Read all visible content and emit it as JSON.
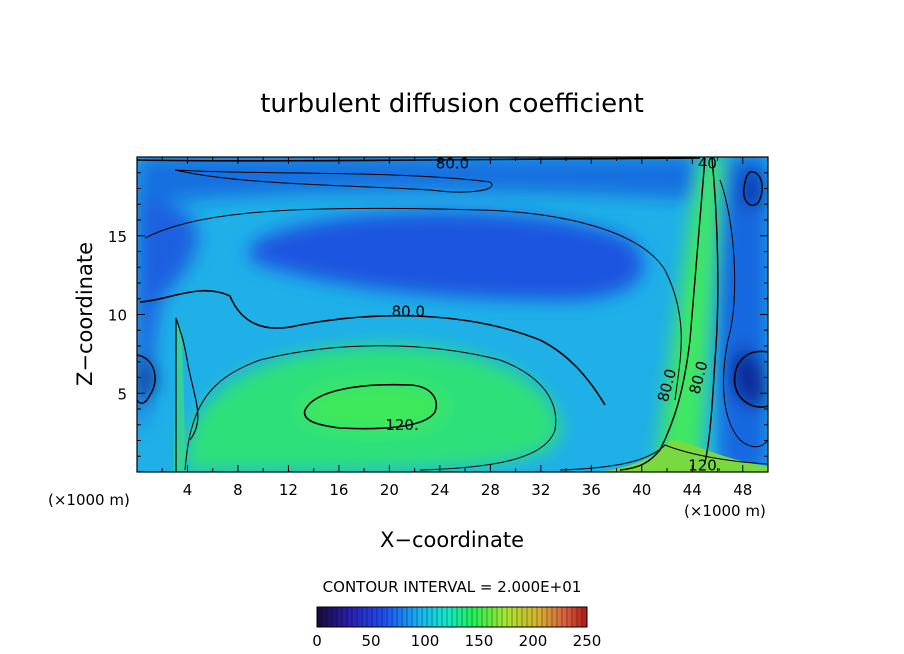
{
  "chart_data": {
    "type": "contour",
    "title": "turbulent diffusion coefficient",
    "xlabel": "X−coordinate",
    "ylabel": "Z−coordinate",
    "x_unit_left": "(×1000 m)",
    "x_unit_right": "(×1000 m)",
    "x_range": [
      0,
      50
    ],
    "y_range": [
      0,
      20
    ],
    "x_ticks": [
      "4",
      "8",
      "12",
      "16",
      "20",
      "24",
      "28",
      "32",
      "36",
      "40",
      "44",
      "48"
    ],
    "y_ticks": [
      "5",
      "10",
      "15"
    ],
    "contour_interval_text": "CONTOUR INTERVAL = 2.000E+01",
    "contour_interval": 20,
    "contour_labels": [
      {
        "text": "80.0",
        "x": 25,
        "y": 19.6
      },
      {
        "text": "80.0",
        "x": 21.5,
        "y": 10.2
      },
      {
        "text": "120.",
        "x": 21,
        "y": 3.0
      },
      {
        "text": "80.0",
        "x": 42,
        "y": 5.5
      },
      {
        "text": "80.0",
        "x": 44.5,
        "y": 6.0
      },
      {
        "text": "120.",
        "x": 45,
        "y": 0.4
      },
      {
        "text": "40",
        "x": 45.2,
        "y": 19.6
      }
    ],
    "colorbar": {
      "range": [
        0,
        250
      ],
      "ticks": [
        "0",
        "50",
        "100",
        "150",
        "200",
        "250"
      ]
    }
  }
}
